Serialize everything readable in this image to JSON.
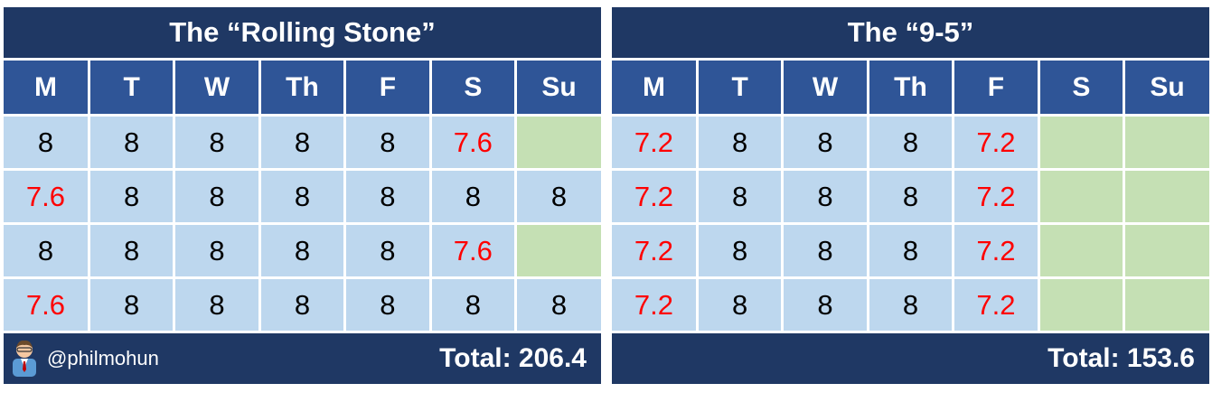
{
  "left_panel": {
    "title": "The “Rolling Stone”",
    "days": [
      "M",
      "T",
      "W",
      "Th",
      "F",
      "S",
      "Su"
    ],
    "rows": [
      [
        "8",
        "8",
        "8",
        "8",
        "8",
        "7.6",
        ""
      ],
      [
        "7.6",
        "8",
        "8",
        "8",
        "8",
        "8",
        "8"
      ],
      [
        "8",
        "8",
        "8",
        "8",
        "8",
        "7.6",
        ""
      ],
      [
        "7.6",
        "8",
        "8",
        "8",
        "8",
        "8",
        "8"
      ]
    ],
    "handle": "@philmohun",
    "total": "Total: 206.4"
  },
  "right_panel": {
    "title": "The “9-5”",
    "days": [
      "M",
      "T",
      "W",
      "Th",
      "F",
      "S",
      "Su"
    ],
    "rows": [
      [
        "7.2",
        "8",
        "8",
        "8",
        "7.2",
        "",
        ""
      ],
      [
        "7.2",
        "8",
        "8",
        "8",
        "7.2",
        "",
        ""
      ],
      [
        "7.2",
        "8",
        "8",
        "8",
        "7.2",
        "",
        ""
      ],
      [
        "7.2",
        "8",
        "8",
        "8",
        "7.2",
        "",
        ""
      ]
    ],
    "total": "Total: 153.6"
  },
  "colors": {
    "title_bg": "#1f3864",
    "header_bg": "#2f5597",
    "cell_bg": "#bdd7ee",
    "empty_cell_bg": "#c5e0b4",
    "reduced_value_text": "#ff0000"
  },
  "icons": {
    "avatar": "person-avatar-icon"
  }
}
